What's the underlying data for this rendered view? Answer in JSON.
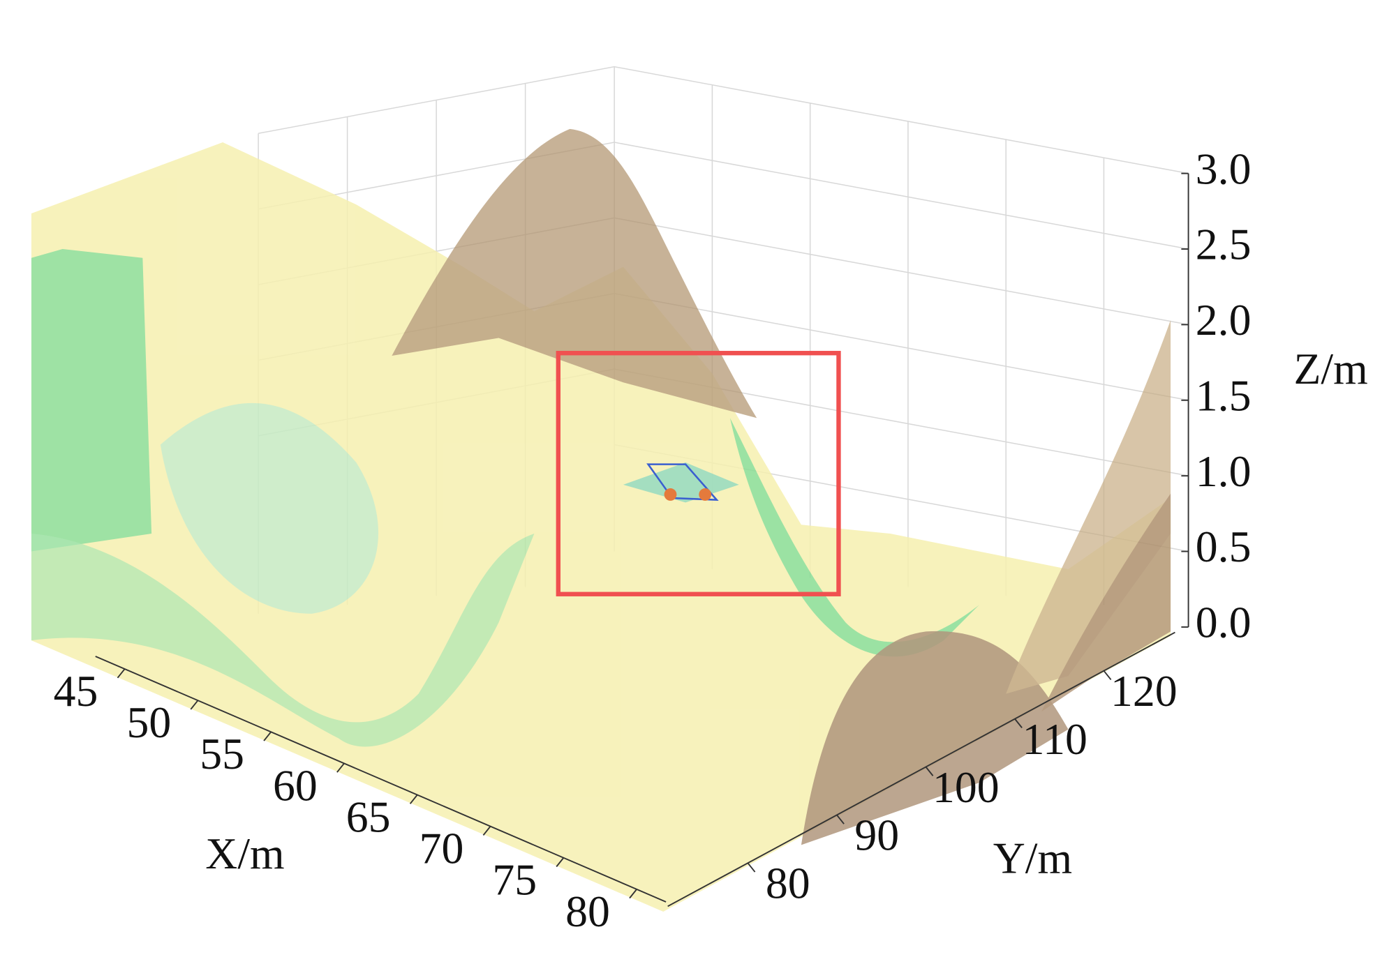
{
  "chart_data": {
    "type": "surface3d",
    "xlabel": "X/m",
    "ylabel": "Y/m",
    "zlabel": "Z/m",
    "xlim": [
      43,
      82
    ],
    "xticks": [
      45,
      50,
      55,
      60,
      65,
      70,
      75,
      80
    ],
    "ylim": [
      71,
      128
    ],
    "yticks": [
      80,
      90,
      100,
      110,
      120
    ],
    "zlim": [
      0,
      3
    ],
    "zticks": [
      {
        "value": 0,
        "label": "0.0"
      },
      0.5,
      {
        "value": 1,
        "label": "1.0"
      },
      1.5,
      {
        "value": 2,
        "label": "2.0"
      },
      2.5,
      {
        "value": 3,
        "label": "3.0"
      }
    ]
  }
}
